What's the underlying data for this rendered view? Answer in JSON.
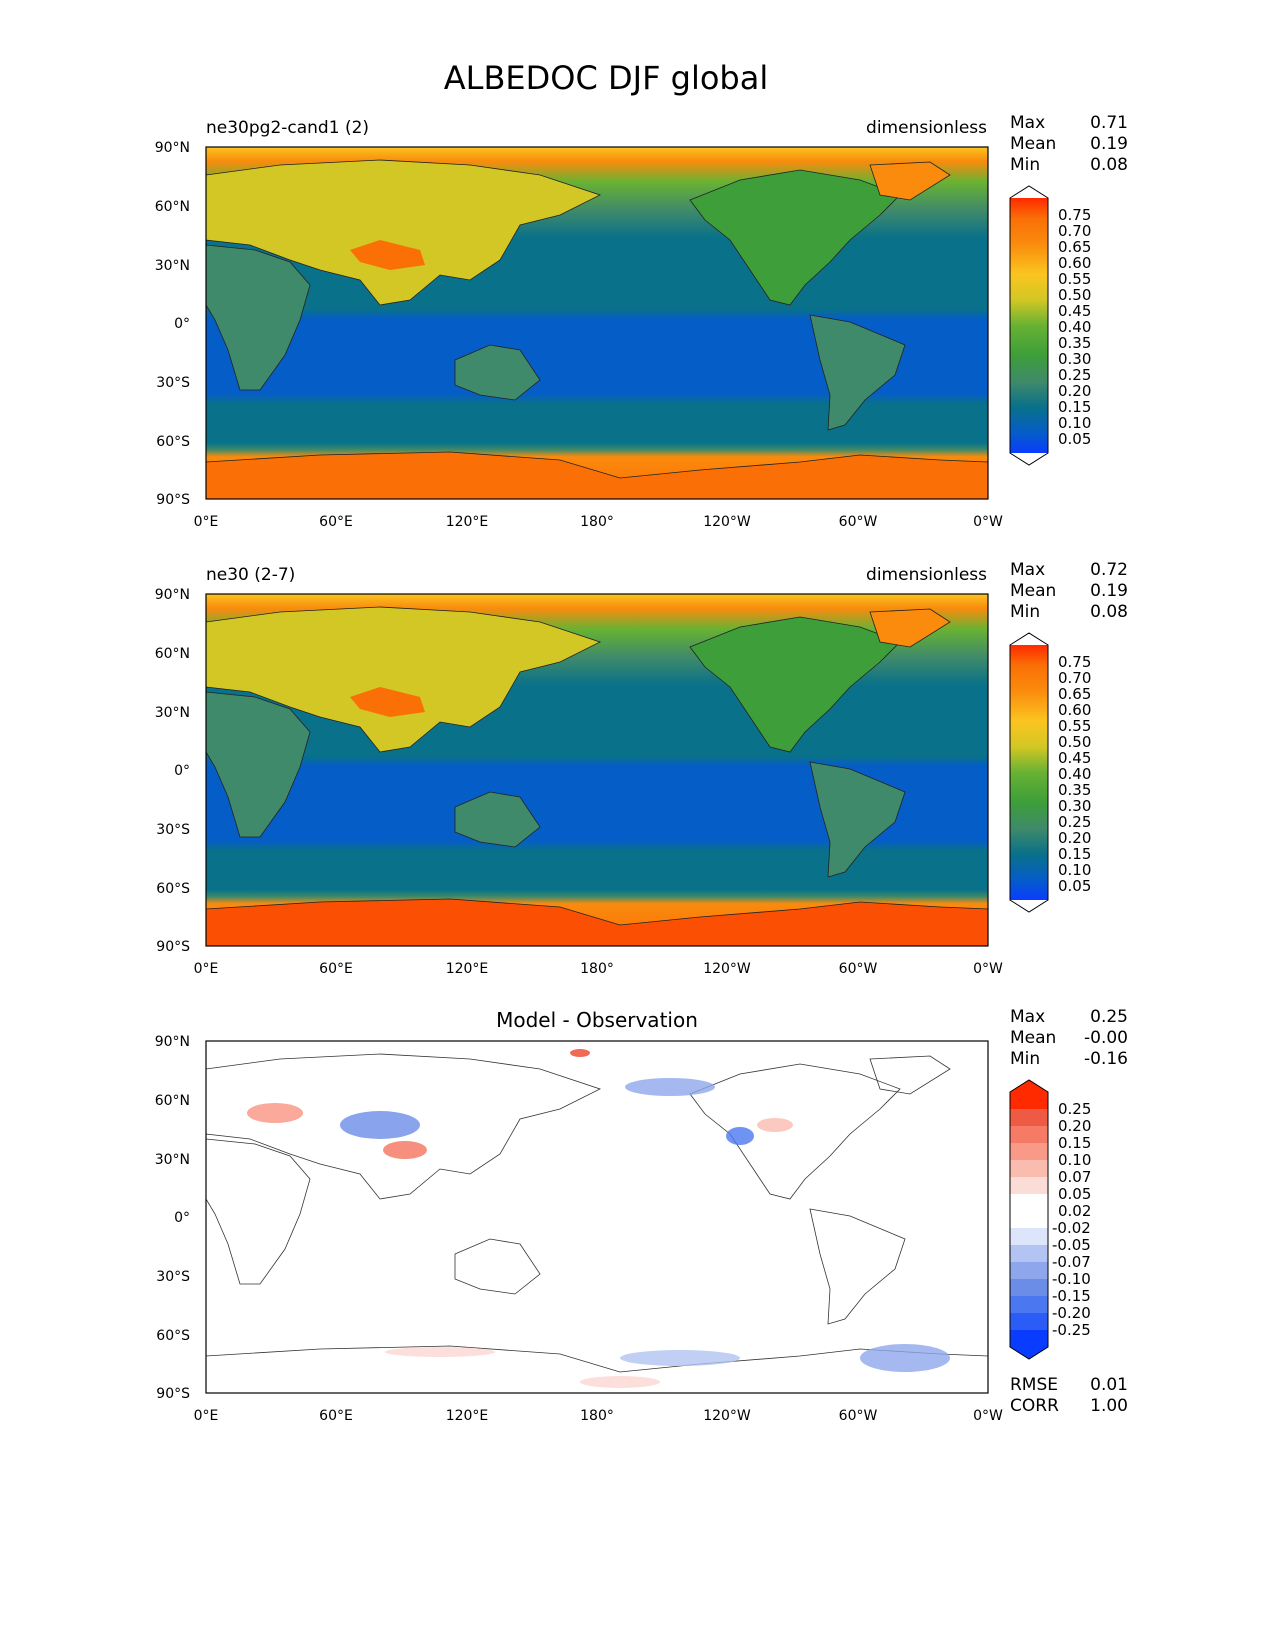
{
  "figure": {
    "title": "ALBEDOC DJF global"
  },
  "colors": {
    "seq": [
      "#0a3cff",
      "#055dc8",
      "#097189",
      "#3f8a6a",
      "#3d9e3a",
      "#68b233",
      "#a6c12c",
      "#d2c724",
      "#fbc520",
      "#f9a90d",
      "#fa8b0d",
      "#fa6f06",
      "#fb5004",
      "#ff2a00"
    ],
    "div": [
      "#0a3cff",
      "#2b5cf5",
      "#4b78f0",
      "#6b8de8",
      "#8ea7ec",
      "#b3c3f2",
      "#dde5fa",
      "#ffffff",
      "#fcdcd6",
      "#fbbcb0",
      "#f99a88",
      "#f57b66",
      "#ee5a44",
      "#ff2a00"
    ]
  },
  "axes": {
    "lat_ticks": [
      "90°N",
      "60°N",
      "30°N",
      "0°",
      "30°S",
      "60°S",
      "90°S"
    ],
    "lon_ticks": [
      "0°E",
      "60°E",
      "120°E",
      "180°",
      "120°W",
      "60°W",
      "0°W"
    ]
  },
  "panels": [
    {
      "id": "test",
      "left_title": "ne30pg2-cand1 (2)",
      "center_title": "",
      "right_title": "dimensionless",
      "stats": [
        {
          "label": "Max",
          "value": "0.71"
        },
        {
          "label": "Mean",
          "value": "0.19"
        },
        {
          "label": "Min",
          "value": "0.08"
        }
      ],
      "colorbar_labels": [
        "0.75",
        "0.70",
        "0.65",
        "0.60",
        "0.55",
        "0.50",
        "0.45",
        "0.40",
        "0.35",
        "0.30",
        "0.25",
        "0.20",
        "0.15",
        "0.10",
        "0.05"
      ],
      "extra_stats": []
    },
    {
      "id": "ref",
      "left_title": "ne30 (2-7)",
      "center_title": "",
      "right_title": "dimensionless",
      "stats": [
        {
          "label": "Max",
          "value": "0.72"
        },
        {
          "label": "Mean",
          "value": "0.19"
        },
        {
          "label": "Min",
          "value": "0.08"
        }
      ],
      "colorbar_labels": [
        "0.75",
        "0.70",
        "0.65",
        "0.60",
        "0.55",
        "0.50",
        "0.45",
        "0.40",
        "0.35",
        "0.30",
        "0.25",
        "0.20",
        "0.15",
        "0.10",
        "0.05"
      ],
      "extra_stats": []
    },
    {
      "id": "diff",
      "left_title": "",
      "center_title": "Model - Observation",
      "right_title": "",
      "stats": [
        {
          "label": "Max",
          "value": "0.25"
        },
        {
          "label": "Mean",
          "value": "-0.00"
        },
        {
          "label": "Min",
          "value": "-0.16"
        }
      ],
      "colorbar_labels": [
        "0.25",
        "0.20",
        "0.15",
        "0.10",
        "0.07",
        "0.05",
        "0.02",
        "-0.02",
        "-0.05",
        "-0.07",
        "-0.10",
        "-0.15",
        "-0.20",
        "-0.25"
      ],
      "extra_stats": [
        {
          "label": "RMSE",
          "value": "0.01"
        },
        {
          "label": "CORR",
          "value": "1.00"
        }
      ]
    }
  ]
}
